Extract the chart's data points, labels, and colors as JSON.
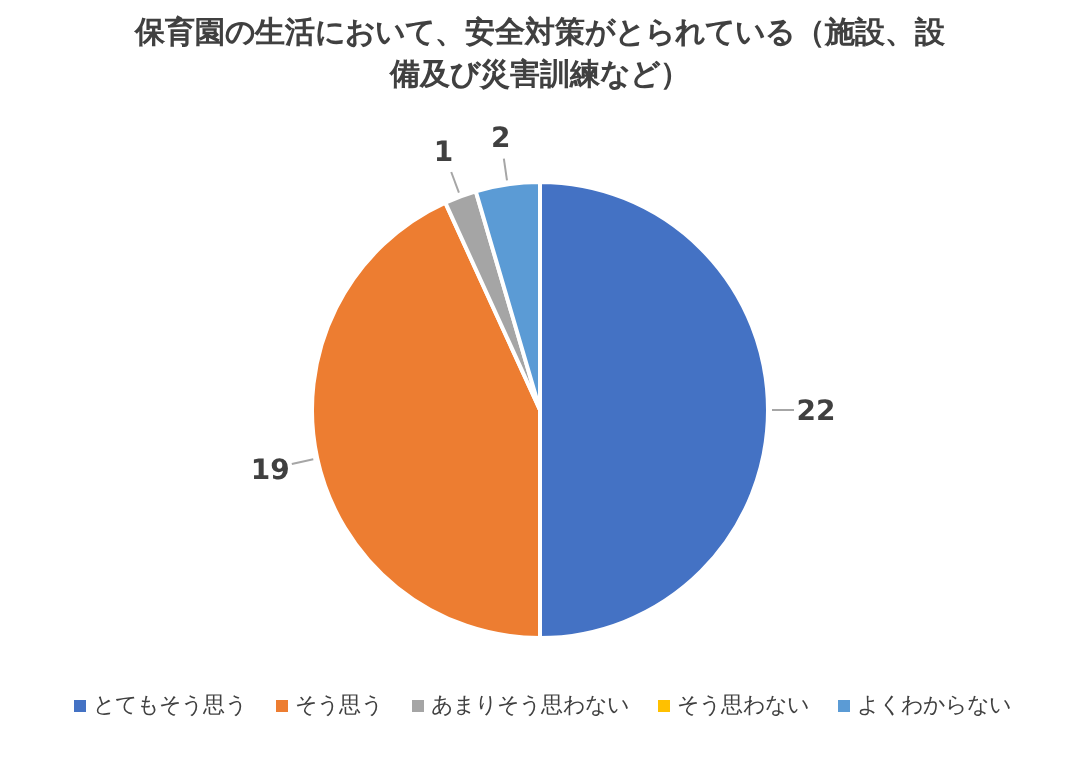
{
  "chart_data": {
    "type": "pie",
    "title": "保育園の生活において、安全対策がとられている（施設、設備及び災害訓練など）",
    "categories": [
      "とてもそう思う",
      "そう思う",
      "あまりそう思わない",
      "そう思わない",
      "よくわからない"
    ],
    "values": [
      22,
      19,
      1,
      0,
      2
    ],
    "colors": [
      "#4472c4",
      "#ed7d31",
      "#a5a5a5",
      "#ffc000",
      "#5b9bd5"
    ],
    "value_labels": [
      "22",
      "19",
      "1",
      null,
      "2"
    ],
    "legend": "bottom"
  }
}
